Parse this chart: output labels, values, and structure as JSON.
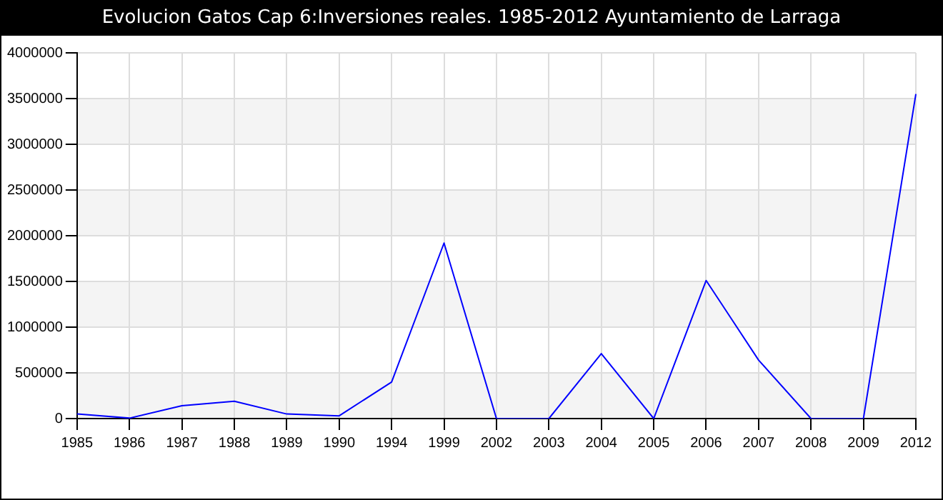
{
  "chart_data": {
    "type": "line",
    "title": "Evolucion Gatos Cap 6:Inversiones reales. 1985-2012 Ayuntamiento de Larraga",
    "categories": [
      "1985",
      "1986",
      "1987",
      "1988",
      "1989",
      "1990",
      "1994",
      "1999",
      "2002",
      "2003",
      "2004",
      "2005",
      "2006",
      "2007",
      "2008",
      "2009",
      "2012"
    ],
    "series": [
      {
        "color": "#0000ff",
        "values": [
          50000,
          5000,
          140000,
          190000,
          50000,
          30000,
          400000,
          1920000,
          0,
          0,
          710000,
          0,
          1510000,
          640000,
          0,
          0,
          3550000
        ]
      }
    ],
    "ylim": [
      0,
      4000000
    ],
    "yticks": [
      0,
      500000,
      1000000,
      1500000,
      2000000,
      2500000,
      3000000,
      3500000,
      4000000
    ],
    "grid": true,
    "legend": false,
    "marker": "none",
    "line_style": "solid"
  }
}
